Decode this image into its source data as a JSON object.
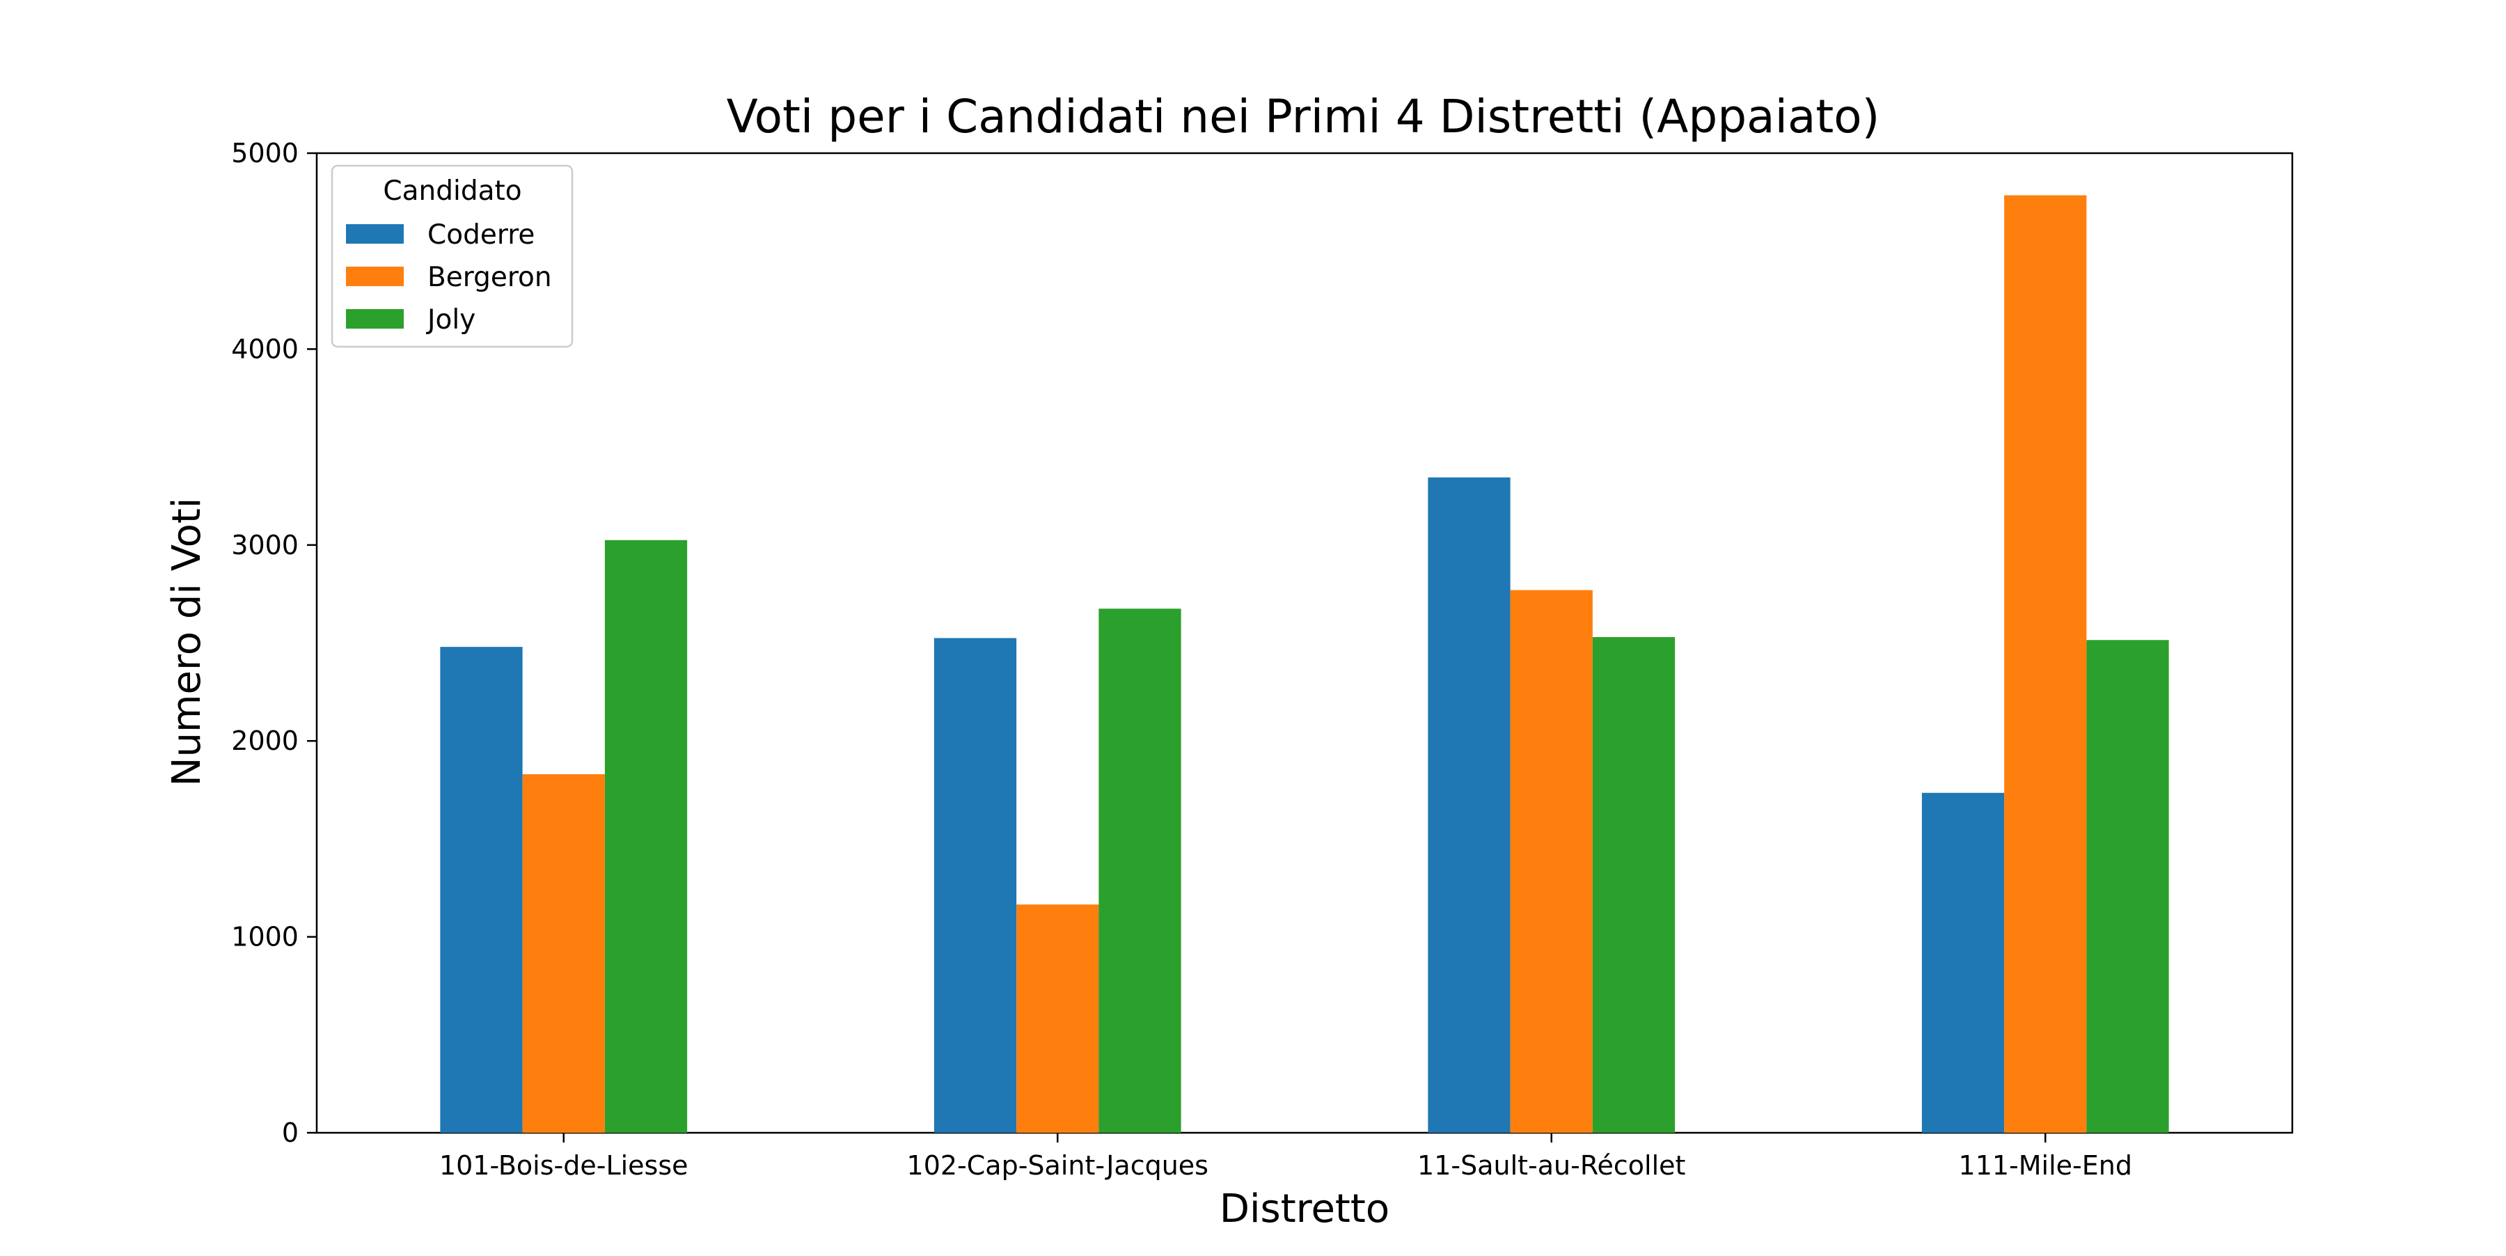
{
  "chart_data": {
    "type": "bar",
    "title": "Voti per i Candidati nei Primi 4 Distretti (Appaiato)",
    "xlabel": "Distretto",
    "ylabel": "Numero di Voti",
    "categories": [
      "101-Bois-de-Liesse",
      "102-Cap-Saint-Jacques",
      "11-Sault-au-Récollet",
      "111-Mile-End"
    ],
    "series": [
      {
        "name": "Coderre",
        "color": "#1f77b4",
        "values": [
          2480,
          2525,
          3345,
          1735
        ]
      },
      {
        "name": "Bergeron",
        "color": "#ff7f0e",
        "values": [
          1830,
          1165,
          2770,
          4785
        ]
      },
      {
        "name": "Joly",
        "color": "#2ca02c",
        "values": [
          3025,
          2675,
          2530,
          2515
        ]
      }
    ],
    "ylim": [
      0,
      5000
    ],
    "yticks": [
      0,
      1000,
      2000,
      3000,
      4000,
      5000
    ],
    "grid": false,
    "legend": {
      "title": "Candidato",
      "placement": "top-left"
    }
  }
}
